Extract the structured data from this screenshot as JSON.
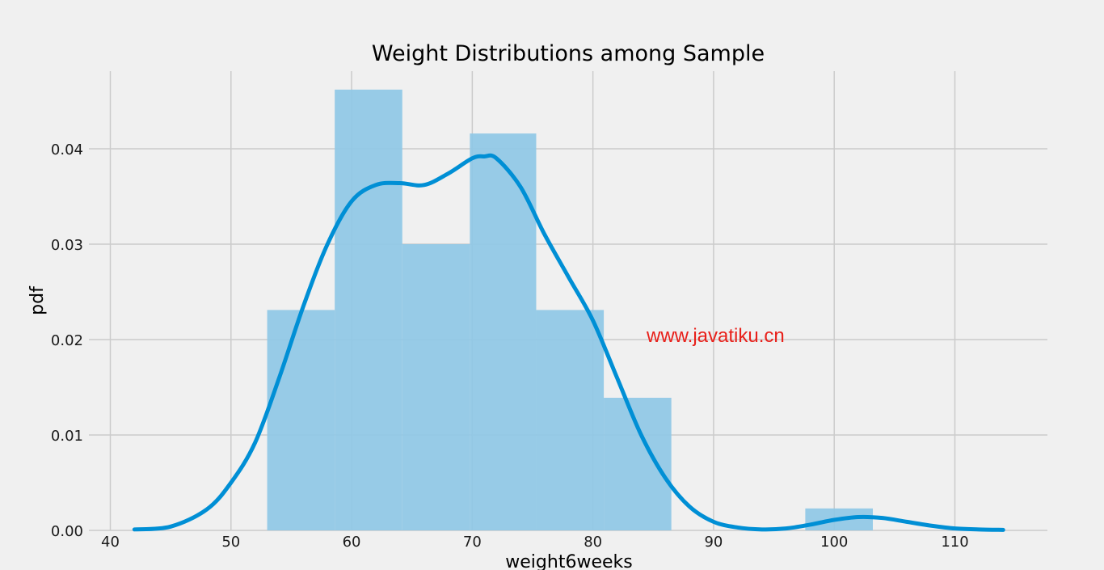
{
  "chart_data": {
    "type": "bar",
    "title": "Weight Distributions among Sample",
    "xlabel": "weight6weeks",
    "ylabel": "pdf",
    "xlim": [
      38.5,
      115
    ],
    "ylim": [
      0,
      0.048
    ],
    "x_ticks": [
      40,
      50,
      60,
      70,
      80,
      90,
      100,
      110
    ],
    "y_ticks": [
      0.0,
      0.01,
      0.02,
      0.03,
      0.04
    ],
    "y_tick_labels": [
      "0.00",
      "0.01",
      "0.02",
      "0.03",
      "0.04"
    ],
    "grid": true,
    "histogram": {
      "bins": [
        {
          "x0": 53.0,
          "x1": 58.6,
          "density": 0.0231
        },
        {
          "x0": 58.6,
          "x1": 64.2,
          "density": 0.0462
        },
        {
          "x0": 64.2,
          "x1": 69.8,
          "density": 0.03
        },
        {
          "x0": 69.8,
          "x1": 75.3,
          "density": 0.0416
        },
        {
          "x0": 75.3,
          "x1": 80.9,
          "density": 0.0231
        },
        {
          "x0": 80.9,
          "x1": 86.5,
          "density": 0.0139
        },
        {
          "x0": 97.6,
          "x1": 103.2,
          "density": 0.0023
        }
      ],
      "color": "#8fc8e6"
    },
    "kde": {
      "color": "#008fd5",
      "x": [
        42,
        45,
        48,
        50,
        52,
        54,
        56,
        58,
        60,
        62,
        64,
        66,
        68,
        70,
        71,
        72,
        74,
        76,
        78,
        80,
        82,
        84,
        86,
        88,
        90,
        92,
        94,
        96,
        98,
        100,
        102,
        104,
        106,
        108,
        110,
        112,
        114
      ],
      "y": [
        0.0001,
        0.0004,
        0.0022,
        0.005,
        0.0092,
        0.016,
        0.0235,
        0.03,
        0.0345,
        0.0362,
        0.0364,
        0.0362,
        0.0374,
        0.039,
        0.0392,
        0.039,
        0.036,
        0.031,
        0.0265,
        0.022,
        0.016,
        0.01,
        0.0055,
        0.0025,
        0.0009,
        0.0003,
        0.0001,
        0.0002,
        0.0006,
        0.0011,
        0.0014,
        0.0013,
        0.0009,
        0.0005,
        0.0002,
        0.0001,
        5e-05
      ]
    }
  },
  "watermark": {
    "text": "www.javatiku.cn",
    "color": "#e8201a"
  }
}
